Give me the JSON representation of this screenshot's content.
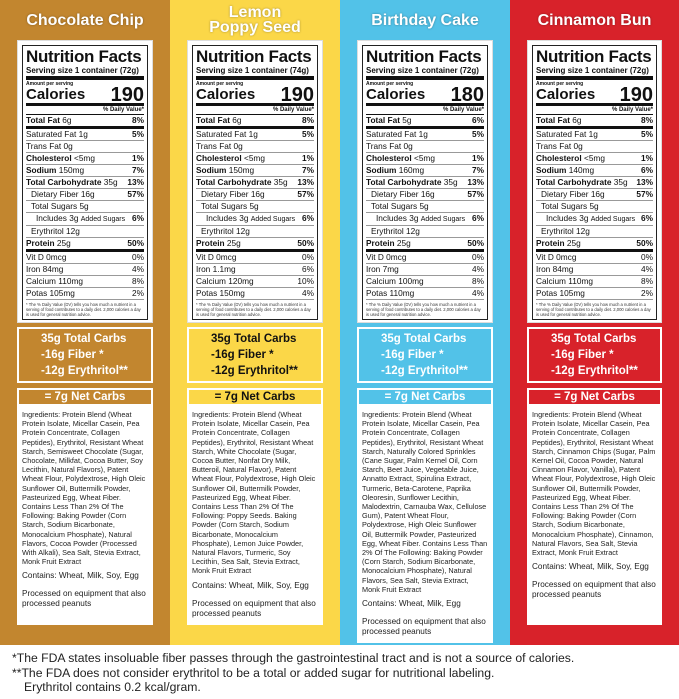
{
  "colors": {
    "chocolate": "#c2862f",
    "lemon": "#fbd748",
    "birthday": "#52c2e8",
    "cinnamon": "#d8222a"
  },
  "common": {
    "nf_title": "Nutrition Facts",
    "amount_per_serving": "Amount per serving",
    "calories_label": "Calories",
    "dv_header": "% Daily Value*",
    "footnote": "* The % Daily Value (DV) tells you how much a nutrient in a serving of food contributes to a daily diet. 2,000 calories a day is used for general nutrition advice."
  },
  "flavors": [
    {
      "name": "Chocolate Chip",
      "color": "#c2862f",
      "carb_text": "#ffffff",
      "serving": "Serving size  1 container (72g)",
      "calories": "190",
      "nutrients": [
        [
          "Total Fat",
          "6g",
          "8%"
        ],
        [
          "Saturated Fat",
          "1g",
          "5%"
        ],
        [
          "Trans Fat",
          "0g",
          ""
        ],
        [
          "Cholesterol",
          "<5mg",
          "1%"
        ],
        [
          "Sodium",
          "150mg",
          "7%"
        ],
        [
          "Total Carbohydrate",
          "35g",
          "13%"
        ],
        [
          "Dietary Fiber",
          "16g",
          "57%"
        ],
        [
          "Total Sugars",
          "5g",
          ""
        ],
        [
          "Includes 3g",
          "Added Sugars",
          "6%"
        ],
        [
          "Erythritol",
          "12g",
          ""
        ],
        [
          "Protein",
          "25g",
          "50%"
        ],
        [
          "Vit D",
          "0mcg",
          "0%"
        ],
        [
          "Iron",
          "84mg",
          "4%"
        ],
        [
          "Calcium",
          "110mg",
          "8%"
        ],
        [
          "Potas",
          "105mg",
          "2%"
        ]
      ],
      "carbs": [
        "35g Total Carbs",
        "-16g Fiber *",
        "-12g Erythritol**"
      ],
      "net": "= 7g Net Carbs",
      "ingredients": "Ingredients: Protein Blend (Wheat Protein Isolate, Micellar Casein, Pea Protein Concentrate, Collagen Peptides), Erythritol, Resistant Wheat Starch, Semisweet Chocolate (Sugar, Chocolate, Milkfat, Cocoa Butter, Soy Lecithin, Natural Flavors), Patent Wheat Flour, Polydextrose, High Oleic Sunflower Oil, Buttermilk Powder, Pasteurized Egg, Wheat Fiber. Contains Less Than 2% Of The Following: Baking Powder (Corn Starch, Sodium Bicarbonate, Monocalcium Phosphate), Natural Flavors, Cocoa Powder (Processed With Alkali), Sea Salt, Stevia Extract, Monk Fruit Extract",
      "contains": "Contains: Wheat, Milk, Soy, Egg",
      "processed": "Processed on equipment that also processed peanuts"
    },
    {
      "name": "Lemon\nPoppy Seed",
      "color": "#fbd748",
      "carb_text": "#111111",
      "serving": "Serving size  1 container (74g)",
      "calories": "190",
      "nutrients": [
        [
          "Total Fat",
          "6g",
          "8%"
        ],
        [
          "Saturated Fat",
          "1g",
          "5%"
        ],
        [
          "Trans Fat",
          "0g",
          ""
        ],
        [
          "Cholesterol",
          "<5mg",
          "1%"
        ],
        [
          "Sodium",
          "150mg",
          "7%"
        ],
        [
          "Total Carbohydrate",
          "35g",
          "13%"
        ],
        [
          "Dietary Fiber",
          "16g",
          "57%"
        ],
        [
          "Total Sugars",
          "5g",
          ""
        ],
        [
          "Includes 3g",
          "Added Sugars",
          "6%"
        ],
        [
          "Erythritol",
          "12g",
          ""
        ],
        [
          "Protein",
          "25g",
          "50%"
        ],
        [
          "Vit D",
          "0mcg",
          "0%"
        ],
        [
          "Iron",
          "1.1mg",
          "6%"
        ],
        [
          "Calcium",
          "120mg",
          "10%"
        ],
        [
          "Potas",
          "150mg",
          "4%"
        ]
      ],
      "carbs": [
        "35g Total Carbs",
        "-16g Fiber *",
        "-12g Erythritol**"
      ],
      "net": "= 7g Net Carbs",
      "ingredients": "Ingredients: Protein Blend (Wheat Protein Isolate, Micellar Casein, Pea Protein Concentrate, Collagen Peptides), Erythritol, Resistant Wheat Starch, White Chocolate (Sugar, Cocoa Butter, Nonfat Dry Milk, Butteroil, Natural Flavor), Patent Wheat Flour, Polydextrose, High Oleic Sunflower Oil, Buttermilk Powder, Pasteurized Egg, Wheat Fiber. Contains Less Than 2% Of The Following: Poppy Seeds. Baking Powder (Corn Starch, Sodium Bicarbonate, Monocalcium Phosphate), Lemon Juice Powder, Natural Flavors, Turmeric, Soy Lecithin, Sea Salt, Stevia Extract, Monk Fruit Extract",
      "contains": "Contains: Wheat, Milk, Soy, Egg",
      "processed": "Processed on equipment that also processed peanuts"
    },
    {
      "name": "Birthday Cake",
      "color": "#52c2e8",
      "carb_text": "#ffffff",
      "serving": "Serving size  1 container (72g)",
      "calories": "180",
      "nutrients": [
        [
          "Total Fat",
          "5g",
          "6%"
        ],
        [
          "Saturated Fat",
          "1g",
          "5%"
        ],
        [
          "Trans Fat",
          "0g",
          ""
        ],
        [
          "Cholesterol",
          "<5mg",
          "1%"
        ],
        [
          "Sodium",
          "160mg",
          "7%"
        ],
        [
          "Total Carbohydrate",
          "35g",
          "13%"
        ],
        [
          "Dietary Fiber",
          "16g",
          "57%"
        ],
        [
          "Total Sugars",
          "5g",
          ""
        ],
        [
          "Includes 3g",
          "Added Sugars",
          "6%"
        ],
        [
          "Erythritol",
          "12g",
          ""
        ],
        [
          "Protein",
          "25g",
          "50%"
        ],
        [
          "Vit D",
          "0mcg",
          "0%"
        ],
        [
          "Iron",
          "7mg",
          "4%"
        ],
        [
          "Calcium",
          "100mg",
          "8%"
        ],
        [
          "Potas",
          "110mg",
          "4%"
        ]
      ],
      "carbs": [
        "35g Total Carbs",
        "-16g Fiber *",
        "-12g Erythritol**"
      ],
      "net": "= 7g Net Carbs",
      "ingredients": "Ingredients: Protein Blend (Wheat Protein Isolate, Micellar Casein, Pea Protein Concentrate, Collagen Peptides), Erythritol, Resistant Wheat Starch, Naturally Colored Sprinkles (Cane Sugar, Palm Kernel Oil, Corn Starch, Beet Juice, Vegetable Juice, Annatto Extract, Spirulina Extract, Turmeric, Beta-Carotene, Paprika Oleoresin, Sunflower Lecithin, Malodextrin, Carnauba Wax, Cellulose Gum), Patent Wheat Flour, Polydextrose, High Oleic Sunflower Oil, Buttermilk Powder, Pasteurized Egg, Wheat Fiber. Contains Less Than 2% Of The Following: Baking Powder (Corn Starch, Sodium Bicarbonate, Monocalcium Phosphate), Natural Flavors, Sea Salt, Stevia Extract, Monk Fruit Extract",
      "contains": "Contains: Wheat, Milk, Egg",
      "processed": "Processed on equipment that also processed peanuts"
    },
    {
      "name": "Cinnamon Bun",
      "color": "#d8222a",
      "carb_text": "#ffffff",
      "serving": "Serving size  1 container (72g)",
      "calories": "190",
      "nutrients": [
        [
          "Total Fat",
          "6g",
          "8%"
        ],
        [
          "Saturated Fat",
          "1g",
          "5%"
        ],
        [
          "Trans Fat",
          "0g",
          ""
        ],
        [
          "Cholesterol",
          "<5mg",
          "1%"
        ],
        [
          "Sodium",
          "140mg",
          "6%"
        ],
        [
          "Total Carbohydrate",
          "35g",
          "13%"
        ],
        [
          "Dietary Fiber",
          "16g",
          "57%"
        ],
        [
          "Total Sugars",
          "5g",
          ""
        ],
        [
          "Includes 3g",
          "Added Sugars",
          "6%"
        ],
        [
          "Erythritol",
          "12g",
          ""
        ],
        [
          "Protein",
          "25g",
          "50%"
        ],
        [
          "Vit D",
          "0mcg",
          "0%"
        ],
        [
          "Iron",
          "84mg",
          "4%"
        ],
        [
          "Calcium",
          "110mg",
          "8%"
        ],
        [
          "Potas",
          "105mg",
          "2%"
        ]
      ],
      "carbs": [
        "35g Total Carbs",
        "-16g Fiber *",
        "-12g Erythritol**"
      ],
      "net": "= 7g Net Carbs",
      "ingredients": "Ingredients: Protein Blend (Wheat Protein Isolate, Micellar Casein, Pea Protein Concentrate, Collagen Peptides), Erythritol, Resistant Wheat Starch, Cinnamon Chips (Sugar, Palm Kernel Oil, Cocoa Powder, Natural Cinnamon Flavor, Vanilla), Patent Wheat Flour, Polydextrose, High Oleic Sunflower Oil, Buttermilk Powder, Pasteurized Egg, Wheat Fiber. Contains Less Than 2% Of The Following: Baking Powder (Corn Starch, Sodium Bicarbonate, Monocalcium Phosphate), Cinnamon, Natural Flavors, Sea Salt, Stevia Extract, Monk Fruit Extract",
      "contains": "Contains: Wheat, Milk, Soy, Egg",
      "processed": "Processed on equipment that also processed peanuts"
    }
  ],
  "footer": [
    "*The FDA states insoluable fiber passes through the gastrointestinal tract and is not a source of calories.",
    "**The FDA does not consider erythritol to be a total or added sugar for nutritional labeling.",
    "Erythritol contains 0.2 kcal/gram."
  ]
}
